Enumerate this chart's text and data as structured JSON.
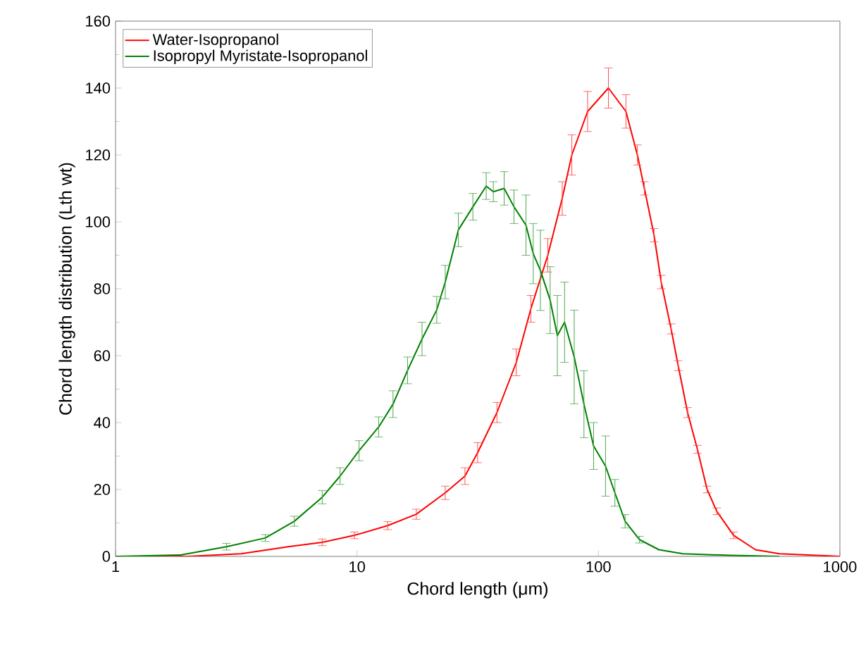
{
  "chart_data": {
    "type": "line",
    "xlabel": "Chord length (μm)",
    "ylabel": "Chord length distribution (Lth wt)",
    "log": "x",
    "xlim": [
      1,
      1000
    ],
    "ylim": [
      0,
      160
    ],
    "xticks": [
      1,
      10,
      100,
      1000
    ],
    "yticks": [
      0,
      20,
      40,
      60,
      80,
      100,
      120,
      140,
      160
    ],
    "grid": false,
    "legend": "top left",
    "marker": "none",
    "line_style": "solid",
    "series": [
      {
        "name": "Water-Isopropanol",
        "color": "#ff0000",
        "x": [
          1,
          2,
          3.31,
          5.19,
          7.18,
          9.77,
          13.4,
          17.6,
          23.2,
          28,
          31.6,
          38,
          45.7,
          52.5,
          61.7,
          70.8,
          77.6,
          90.2,
          110,
          130,
          145,
          155,
          170,
          182,
          200,
          214,
          234,
          257,
          282,
          309,
          363,
          447,
          562,
          871,
          1000
        ],
        "values": [
          0,
          0,
          0.8,
          2.9,
          4.2,
          6.3,
          9.2,
          12.6,
          19,
          24,
          31,
          43,
          58,
          74,
          90,
          107,
          120,
          133,
          140,
          133,
          120,
          110,
          96,
          82,
          68,
          57,
          43,
          32,
          20,
          13.5,
          6.3,
          2,
          0.8,
          0.2,
          0
        ],
        "errors": [
          null,
          null,
          null,
          null,
          1,
          1,
          1.2,
          1.5,
          2,
          2.5,
          3,
          3,
          4,
          4,
          5,
          5,
          6,
          6,
          6,
          5,
          3,
          2,
          2,
          2,
          1.5,
          1.5,
          1.5,
          1.2,
          1,
          1,
          1,
          null,
          null,
          null,
          null
        ]
      },
      {
        "name": "Isopropyl Myristate-Isopropanol",
        "color": "#008000",
        "x": [
          1,
          1.86,
          2.88,
          4.17,
          5.5,
          7.18,
          8.51,
          10.2,
          12.3,
          14.1,
          16.2,
          18.6,
          21.4,
          23.2,
          26.3,
          30.2,
          34.3,
          36.7,
          40.7,
          44.7,
          50.1,
          53.7,
          57.5,
          63.1,
          67.6,
          72.4,
          79.4,
          87.1,
          95.5,
          107,
          117,
          129,
          148,
          178,
          224,
          355,
          562
        ],
        "values": [
          0,
          0.4,
          2.9,
          5.5,
          10.5,
          17.7,
          24,
          31.6,
          38.7,
          45.5,
          55.6,
          65,
          73.7,
          82,
          97.6,
          104.5,
          110.7,
          109,
          110,
          104.5,
          99,
          90.5,
          85.5,
          76.6,
          66,
          70,
          59.6,
          45.5,
          33,
          27,
          19,
          10.5,
          5,
          2,
          0.8,
          0.3,
          0
        ],
        "errors": [
          null,
          null,
          1,
          1,
          1.5,
          2,
          2.5,
          3,
          3,
          4,
          4,
          5,
          4,
          5,
          5,
          4,
          4,
          3,
          5,
          5,
          9,
          9,
          12,
          10,
          12,
          12,
          14,
          10,
          7,
          9,
          4,
          2,
          1,
          null,
          null,
          null,
          null
        ]
      }
    ]
  }
}
